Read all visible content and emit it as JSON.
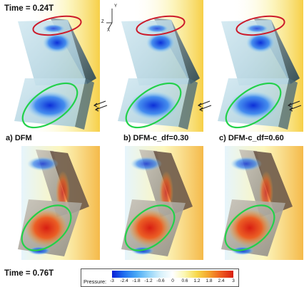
{
  "time_top": "Time = 0.24T",
  "time_bottom": "Time = 0.76T",
  "panel_labels": [
    "a) DFM",
    "b) DFM-c_df=0.30",
    "c) DFM-c_df=0.60"
  ],
  "axis_labels": {
    "z": "Z",
    "y": "Y",
    "x": "X"
  },
  "colorbar": {
    "title": "Pressure:",
    "ticks": [
      "-3",
      "-2.4",
      "-1.8",
      "-1.2",
      "-0.6",
      "0",
      "0.6",
      "1.2",
      "1.8",
      "2.4",
      "3"
    ],
    "min": -3,
    "max": 3,
    "colors": [
      "#0a1fd6",
      "#1f6ff0",
      "#48a8f5",
      "#8fd3fa",
      "#d7f1fb",
      "#ffffff",
      "#fbf7b0",
      "#f7d84a",
      "#f4a22c",
      "#ee5a1e",
      "#d81e12"
    ]
  },
  "colors": {
    "ellipse_top": "#cc1a2a",
    "ellipse_bottom": "#22d14a",
    "flow_arrow": "#222222"
  }
}
